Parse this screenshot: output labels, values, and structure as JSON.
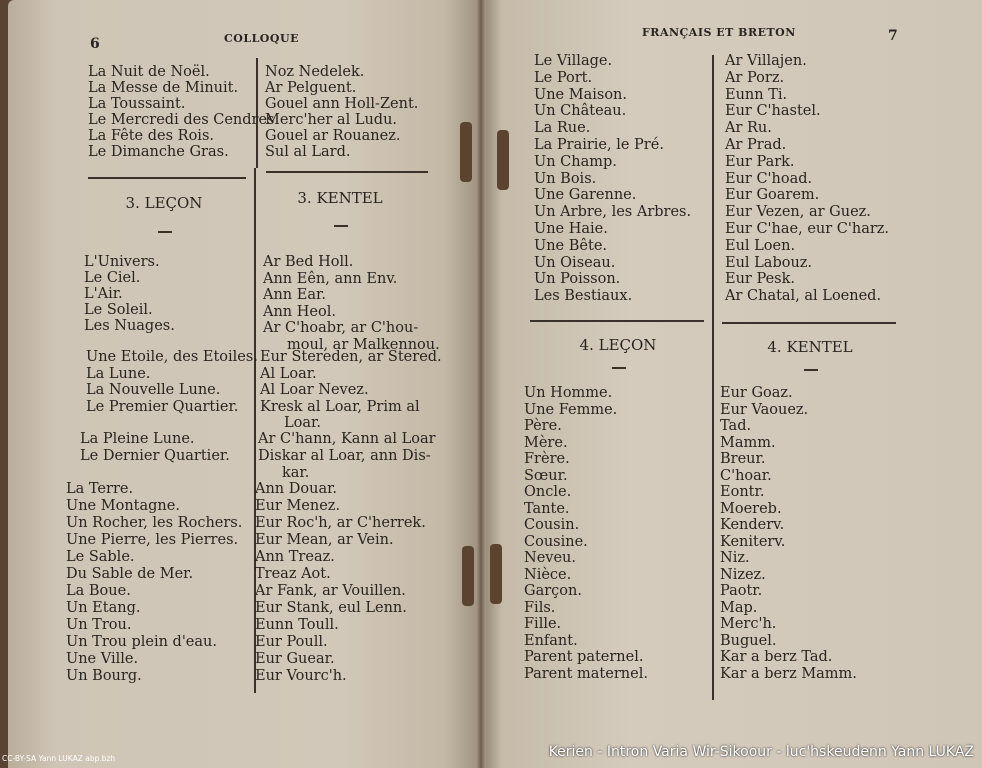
{
  "left_page": {
    "page_number": "6",
    "running_header": "COLLOQUE",
    "blocks": [
      {
        "fr": [
          "La Nuit de Noël.",
          "La Messe de Minuit.",
          "La Toussaint.",
          "Le Mercredi des Cendres",
          "La Fête des Rois.",
          "Le Dimanche Gras."
        ],
        "br": [
          "Noz Nedelek.",
          "Ar Pelguent.",
          "Gouel ann Holl-Zent.",
          "Merc'her al Ludu.",
          "Gouel ar Rouanez.",
          "Sul al Lard."
        ]
      },
      {
        "fr": [
          "L'Univers.",
          "Le Ciel.",
          "L'Air.",
          "Le Soleil.",
          "Les Nuages."
        ],
        "br": [
          "Ar Bed Holl.",
          "Ann Eên, ann Env.",
          "Ann Ear.",
          "Ann Heol.",
          "Ar C'hoabr, ar C'hou-",
          "moul, ar Malkennou."
        ]
      },
      {
        "fr": [
          "Une Etoile, des Etoiles.",
          "La Lune.",
          "La Nouvelle Lune.",
          "Le Premier Quartier."
        ],
        "br": [
          "Eur Stereden, ar Stered.",
          "Al Loar.",
          "Al Loar Nevez.",
          "Kresk al Loar, Prim al",
          "Loar."
        ]
      },
      {
        "fr": [
          "La Pleine Lune.",
          "Le Dernier Quartier."
        ],
        "br": [
          "Ar C'hann, Kann al Loar",
          "Diskar al Loar, ann Dis-",
          "kar."
        ]
      },
      {
        "fr": [
          "La Terre.",
          "Une Montagne.",
          "Un Rocher, les Rochers.",
          "Une Pierre, les Pierres.",
          "Le Sable.",
          "Du Sable de Mer.",
          "La Boue.",
          "Un Etang.",
          "Un Trou.",
          "Un Trou plein d'eau.",
          "Une Ville.",
          "Un Bourg."
        ],
        "br": [
          "Ann Douar.",
          "Eur Menez.",
          "Eur Roc'h, ar C'herrek.",
          "Eur Mean, ar Vein.",
          "Ann Treaz.",
          "Treaz Aot.",
          "Ar Fank, ar Vouillen.",
          "Eur Stank, eul Lenn.",
          "Eunn Toull.",
          "Eur Poull.",
          "Eur Guear.",
          "Eur Vourc'h."
        ]
      }
    ],
    "heading_fr": "3. LEÇON",
    "heading_br": "3. KENTEL",
    "dash": "—"
  },
  "right_page": {
    "page_number": "7",
    "running_header": "FRANÇAIS ET BRETON",
    "blocks": [
      {
        "fr": [
          "Le Village.",
          "Le Port.",
          "Une Maison.",
          "Un Château.",
          "La Rue.",
          "La Prairie, le Pré.",
          "Un Champ.",
          "Un Bois.",
          "Une Garenne.",
          "Un Arbre, les Arbres.",
          "Une Haie.",
          "Une Bête.",
          "Un Oiseau.",
          "Un Poisson.",
          "Les Bestiaux."
        ],
        "br": [
          "Ar Villajen.",
          "Ar Porz.",
          "Eunn Ti.",
          "Eur C'hastel.",
          "Ar Ru.",
          "Ar Prad.",
          "Eur Park.",
          "Eur C'hoad.",
          "Eur Goarem.",
          "Eur Vezen, ar Guez.",
          "Eur C'hae, eur C'harz.",
          "Eul Loen.",
          "Eul Labouz.",
          "Eur Pesk.",
          "Ar Chatal, al Loened."
        ]
      },
      {
        "fr": [
          "Un Homme.",
          "Une Femme.",
          "Père.",
          "Mère.",
          "Frère.",
          "Sœur.",
          "Oncle.",
          "Tante.",
          "Cousin.",
          "Cousine.",
          "Neveu.",
          "Nièce.",
          "Garçon.",
          "Fils.",
          "Fille.",
          "Enfant.",
          "Parent paternel.",
          "Parent maternel."
        ],
        "br": [
          "Eur Goaz.",
          "Eur Vaouez.",
          "Tad.",
          "Mamm.",
          "Breur.",
          "C'hoar.",
          "Eontr.",
          "Moereb.",
          "Kenderv.",
          "Keniterv.",
          "Niz.",
          "Nizez.",
          "Paotr.",
          "Map.",
          "Merc'h.",
          "Buguel.",
          "Kar a berz Tad.",
          "Kar a berz Mamm."
        ]
      }
    ],
    "heading_fr": "4. LEÇON",
    "heading_br": "4. KENTEL",
    "dash": "—"
  },
  "credits": {
    "license": "CC-BY-SA Yann LUKAZ abp.bzh",
    "caption": "Kerien - Intron Varia Wir-Sikoour - luc'hskeudenn Yann LUKAZ"
  }
}
